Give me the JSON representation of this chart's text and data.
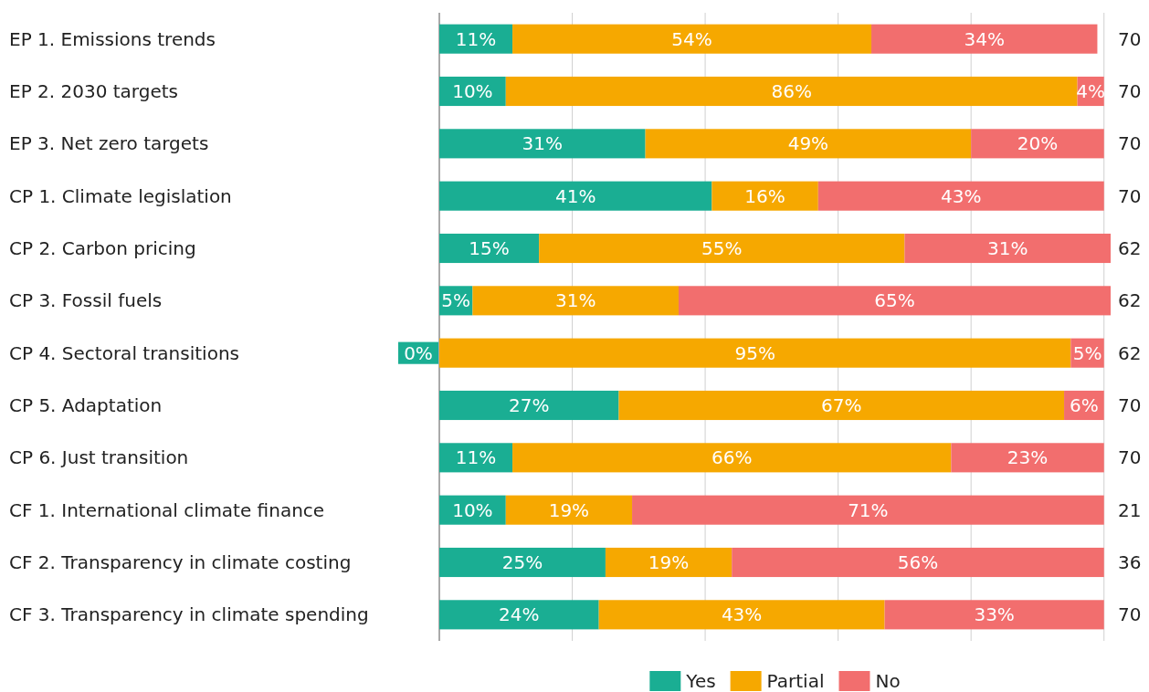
{
  "chart_data": {
    "type": "bar",
    "orientation": "horizontal",
    "stacked": true,
    "categories": [
      "EP 1. Emissions trends",
      "EP 2. 2030 targets",
      "EP 3. Net zero targets",
      "CP 1. Climate legislation",
      "CP 2. Carbon pricing",
      "CP 3. Fossil fuels",
      "CP 4. Sectoral transitions",
      "CP 5. Adaptation",
      "CP 6. Just transition",
      "CF 1. International climate finance",
      "CF 2. Transparency in climate costing",
      "CF 3. Transparency in climate spending"
    ],
    "series": [
      {
        "name": "Yes",
        "color": "#1aae93",
        "values": [
          11,
          10,
          31,
          41,
          15,
          5,
          0,
          27,
          11,
          10,
          25,
          24
        ],
        "value_labels": [
          "11%",
          "10%",
          "31%",
          "41%",
          "15%",
          "5%",
          "0%",
          "27%",
          "11%",
          "10%",
          "25%",
          "24%"
        ]
      },
      {
        "name": "Partial",
        "color": "#f6a800",
        "values": [
          54,
          86,
          49,
          16,
          55,
          31,
          95,
          67,
          66,
          19,
          19,
          43
        ],
        "value_labels": [
          "54%",
          "86%",
          "49%",
          "16%",
          "55%",
          "31%",
          "95%",
          "67%",
          "66%",
          "19%",
          "19%",
          "43%"
        ]
      },
      {
        "name": "No",
        "color": "#f26e6e",
        "values": [
          34,
          4,
          20,
          43,
          31,
          65,
          5,
          6,
          23,
          71,
          56,
          33
        ],
        "value_labels": [
          "34%",
          "4%",
          "20%",
          "43%",
          "31%",
          "65%",
          "5%",
          "6%",
          "23%",
          "71%",
          "56%",
          "33%"
        ]
      }
    ],
    "annotations": [
      "70",
      "70",
      "70",
      "70",
      "62",
      "62",
      "62",
      "70",
      "70",
      "21",
      "36",
      "70"
    ],
    "xlim": [
      0,
      101
    ],
    "xticks": [
      {
        "value": 0,
        "label": null
      },
      {
        "value": 20,
        "label": null
      },
      {
        "value": 40,
        "label": null
      },
      {
        "value": 60,
        "label": null
      },
      {
        "value": 80,
        "label": null
      },
      {
        "value": 100,
        "label": null
      }
    ],
    "tick_labels": "y",
    "grid": "x",
    "legend": "bottom"
  }
}
